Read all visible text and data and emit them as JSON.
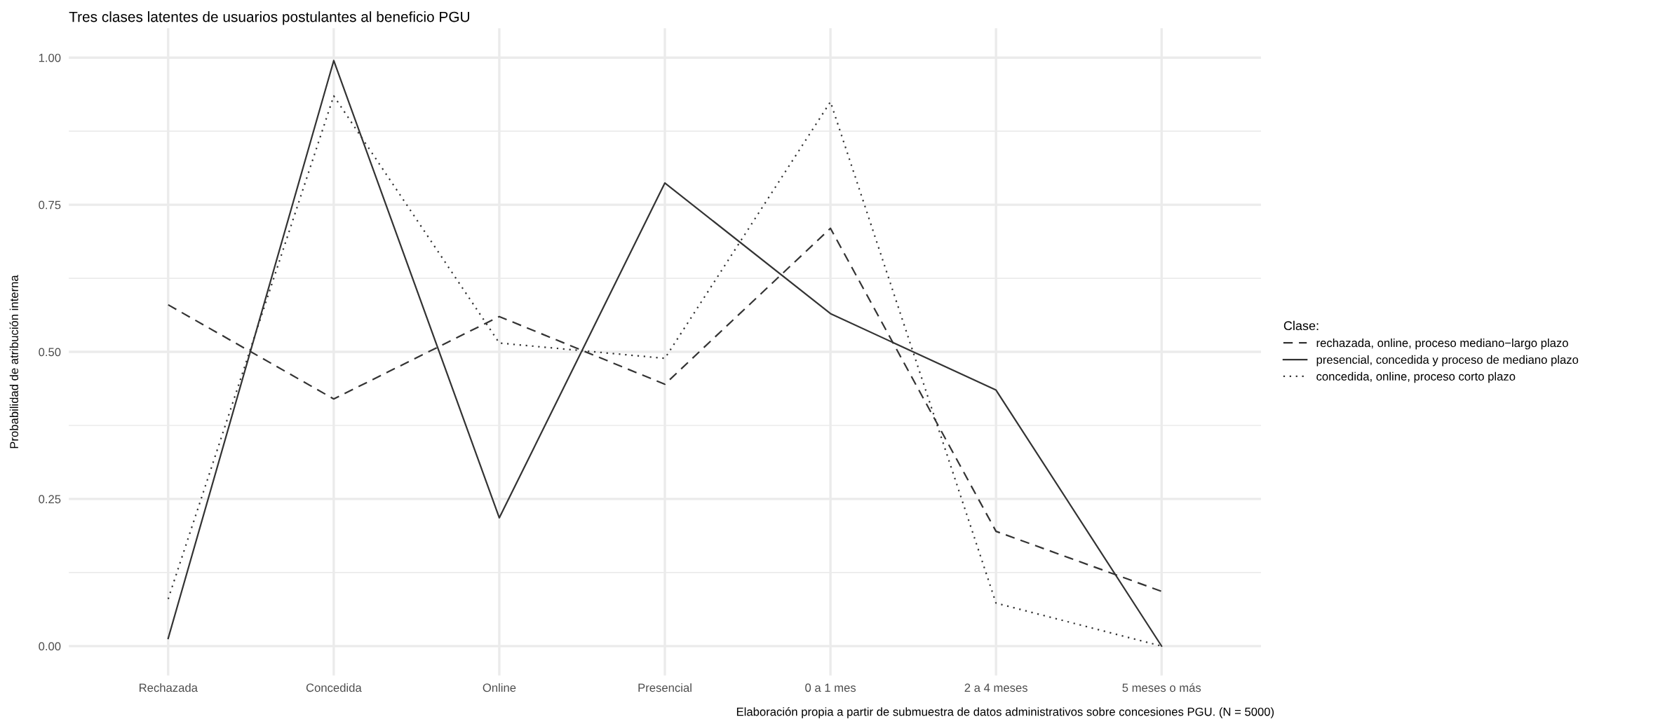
{
  "chart_data": {
    "type": "line",
    "title": "Tres clases latentes de usuarios postulantes al beneficio PGU",
    "ylabel": "Probabilidad de atribución interna",
    "categories": [
      "Rechazada",
      "Concedida",
      "Online",
      "Presencial",
      "0 a 1 mes",
      "2 a 4 meses",
      "5 meses o más"
    ],
    "series": [
      {
        "name": "rechazada, online, proceso mediano−largo plazo",
        "color": "#333333",
        "line_style": "dashed",
        "values": [
          0.58,
          0.42,
          0.56,
          0.445,
          0.71,
          0.195,
          0.093
        ]
      },
      {
        "name": "presencial, concedida y proceso de mediano plazo",
        "color": "#333333",
        "line_style": "solid",
        "values": [
          0.013,
          0.995,
          0.218,
          0.787,
          0.565,
          0.435,
          0.0
        ]
      },
      {
        "name": "concedida, online, proceso corto plazo",
        "color": "#333333",
        "line_style": "dotted",
        "values": [
          0.08,
          0.935,
          0.515,
          0.489,
          0.925,
          0.073,
          0.0
        ]
      }
    ],
    "ylim": [
      -0.05,
      1.05
    ],
    "yticks": [
      {
        "value": 0.0,
        "label": "0.00"
      },
      {
        "value": 0.125,
        "label": null
      },
      {
        "value": 0.25,
        "label": "0.25"
      },
      {
        "value": 0.375,
        "label": null
      },
      {
        "value": 0.5,
        "label": "0.50"
      },
      {
        "value": 0.625,
        "label": null
      },
      {
        "value": 0.75,
        "label": "0.75"
      },
      {
        "value": 0.875,
        "label": null
      },
      {
        "value": 1.0,
        "label": "1.00"
      }
    ],
    "grid": true,
    "legend": "right",
    "legend_title": "Clase:",
    "marker": "none",
    "annotations": [
      "Elaboración propia a partir de submuestra de datos administrativos sobre concesiones PGU. (N = 5000)"
    ]
  }
}
